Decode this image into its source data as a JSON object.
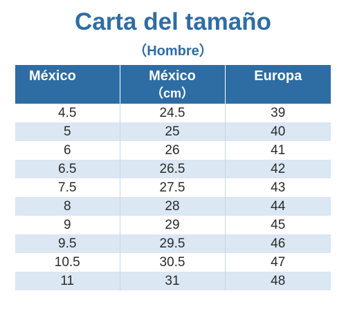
{
  "title": "Carta del tamaño",
  "subtitle": "（Hombre）",
  "colors": {
    "accent": "#2e6da4",
    "stripe": "#dbe7f3"
  },
  "table": {
    "headers": [
      {
        "label": "México",
        "unit": ""
      },
      {
        "label": "México",
        "unit": "（cm）"
      },
      {
        "label": "Europa",
        "unit": ""
      }
    ],
    "rows": [
      [
        "4.5",
        "24.5",
        "39"
      ],
      [
        "5",
        "25",
        "40"
      ],
      [
        "6",
        "26",
        "41"
      ],
      [
        "6.5",
        "26.5",
        "42"
      ],
      [
        "7.5",
        "27.5",
        "43"
      ],
      [
        "8",
        "28",
        "44"
      ],
      [
        "9",
        "29",
        "45"
      ],
      [
        "9.5",
        "29.5",
        "46"
      ],
      [
        "10.5",
        "30.5",
        "47"
      ],
      [
        "11",
        "31",
        "48"
      ]
    ]
  }
}
